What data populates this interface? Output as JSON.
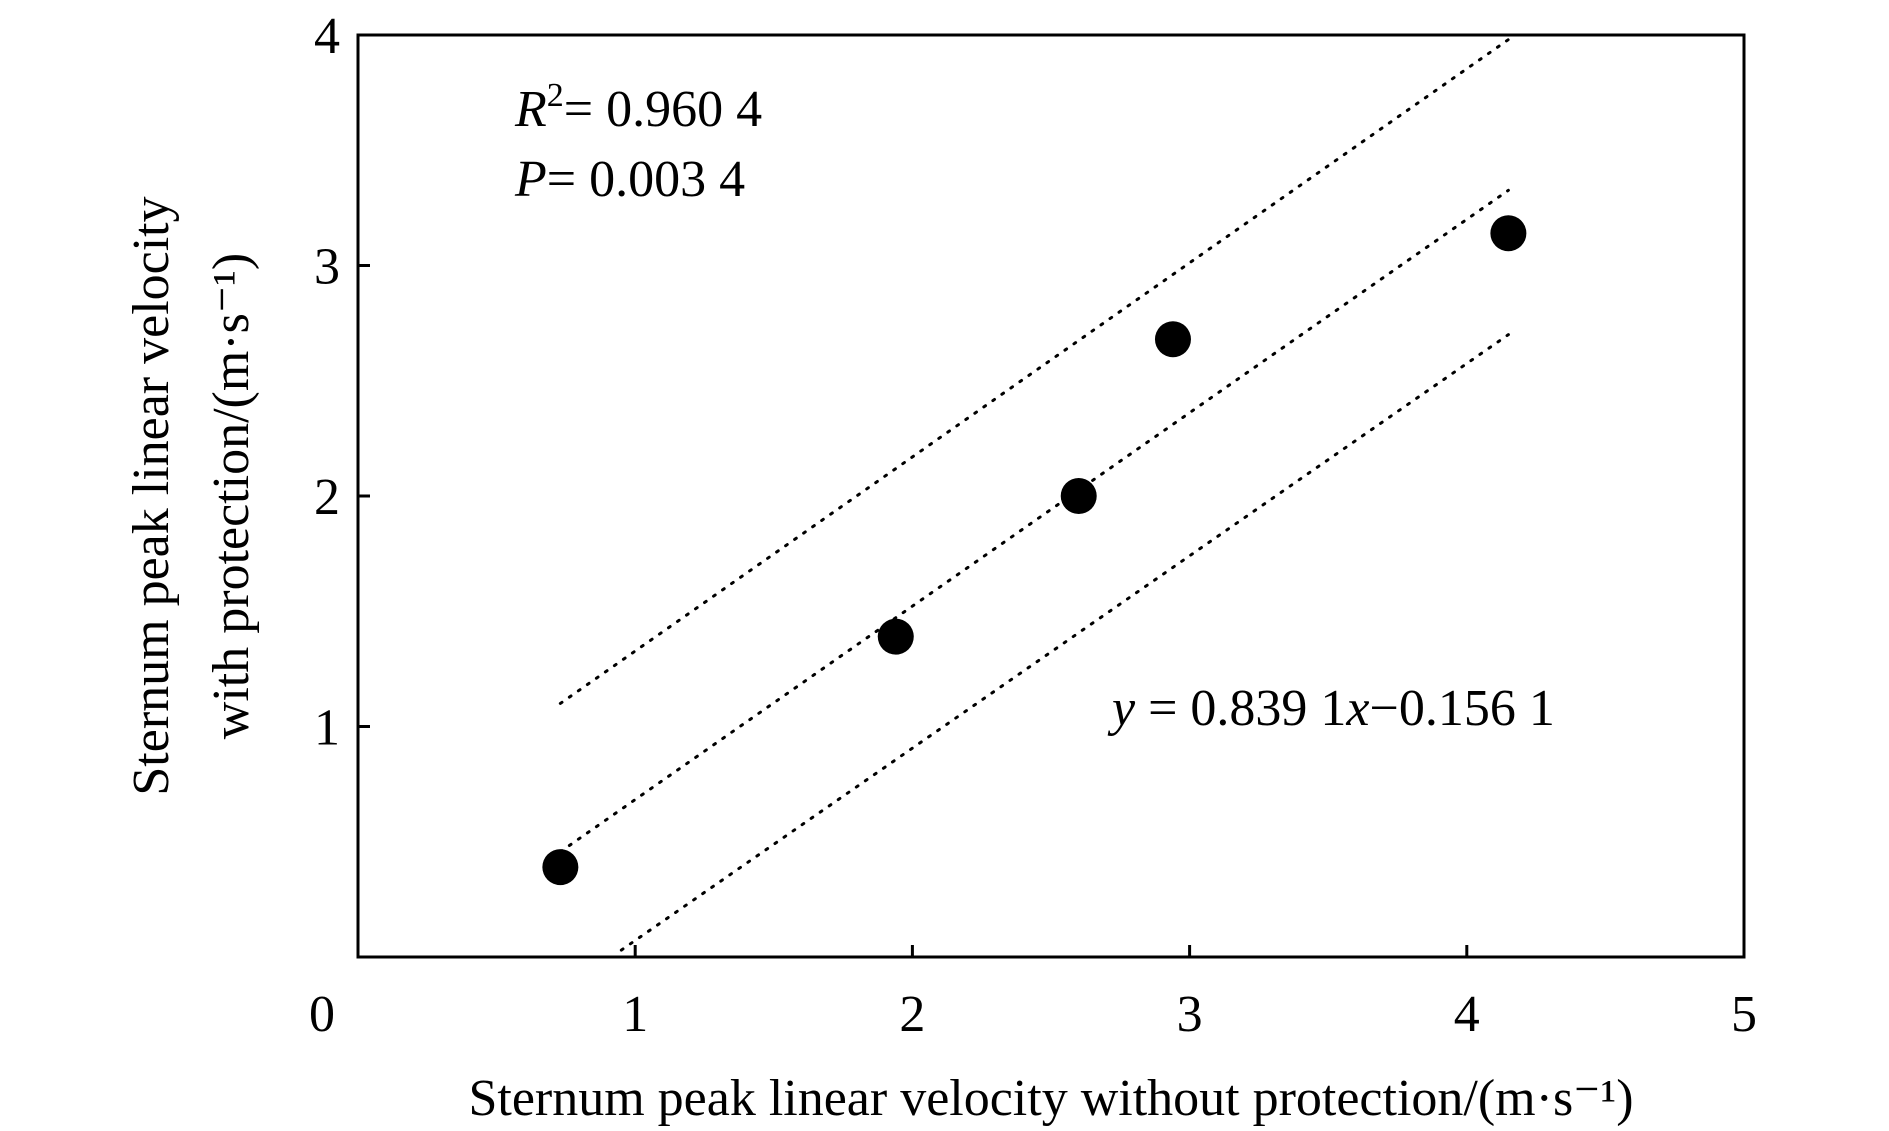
{
  "chart_data": {
    "type": "scatter",
    "title": "",
    "xlabel": "Sternum peak linear velocity without protection/(m·s⁻¹)",
    "ylabel": "Sternum peak linear velocity with protection/(m·s⁻¹)",
    "ylabel_lines": [
      "Sternum peak linear velocity",
      "with protection/(m·s⁻¹)"
    ],
    "xlim": [
      0,
      5
    ],
    "ylim": [
      0,
      4
    ],
    "x_ticks": [
      0,
      1,
      2,
      3,
      4,
      5
    ],
    "y_ticks": [
      1,
      2,
      3,
      4
    ],
    "grid": false,
    "legend": "none",
    "points": [
      {
        "x": 0.73,
        "y": 0.39
      },
      {
        "x": 1.94,
        "y": 1.39
      },
      {
        "x": 2.6,
        "y": 2.0
      },
      {
        "x": 2.94,
        "y": 2.68
      },
      {
        "x": 4.15,
        "y": 3.14
      }
    ],
    "fit_line": {
      "slope": 0.8391,
      "intercept": -0.1561,
      "x_range": [
        0.73,
        4.15
      ],
      "style": "dotted"
    },
    "confidence_band": {
      "upper": [
        {
          "x": 0.73,
          "y": 1.1
        },
        {
          "x": 4.15,
          "y": 3.98
        }
      ],
      "lower": [
        {
          "x": 0.95,
          "y": 0.03
        },
        {
          "x": 4.15,
          "y": 2.7
        }
      ],
      "style": "dotted"
    },
    "annotations": {
      "r2_symbol": "R",
      "r2_sup": "2",
      "r2_value": "= 0.960 4",
      "p_symbol": "P",
      "p_value": "= 0.003 4",
      "eq_y": "y",
      "eq_mid": " = 0.839 1",
      "eq_x": "x",
      "eq_tail": "−0.156 1"
    },
    "marker_color": "#000000",
    "line_color": "#000000"
  }
}
